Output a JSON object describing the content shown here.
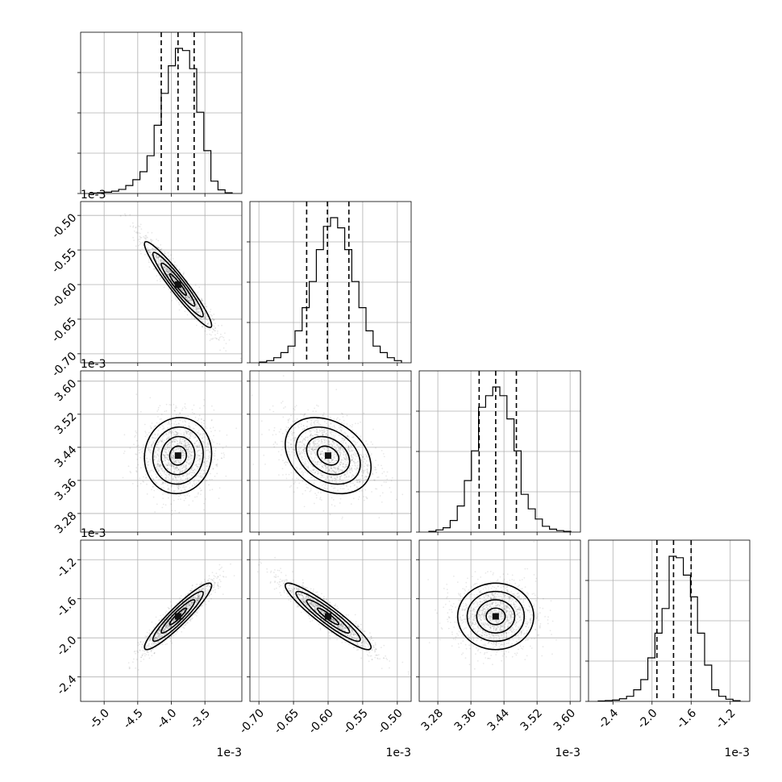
{
  "chart_data": {
    "type": "corner",
    "parameters": [
      {
        "mean": -3.9,
        "sd": 0.25,
        "range": [
          -5.35,
          -2.95
        ],
        "ticks": [
          "-5.0",
          "-4.5",
          "-4.0",
          "-3.5"
        ],
        "tick_values": [
          -5.0,
          -4.5,
          -4.0,
          -3.5
        ],
        "offset": "1e-3",
        "quantiles": [
          -4.15,
          -3.9,
          -3.66
        ]
      },
      {
        "mean": -0.6,
        "sd": 0.031,
        "range": [
          -0.713,
          -0.48
        ],
        "ticks": [
          "-0.70",
          "-0.65",
          "-0.60",
          "-0.55",
          "-0.50"
        ],
        "tick_values": [
          -0.7,
          -0.65,
          -0.6,
          -0.55,
          -0.5
        ],
        "offset": "1e-3",
        "quantiles": [
          -0.631,
          -0.601,
          -0.57
        ]
      },
      {
        "mean": 3.42,
        "sd": 0.046,
        "range": [
          3.235,
          3.625
        ],
        "ticks": [
          "3.28",
          "3.36",
          "3.44",
          "3.52",
          "3.60"
        ],
        "tick_values": [
          3.28,
          3.36,
          3.44,
          3.52,
          3.6
        ],
        "offset": "1e-3",
        "quantiles": [
          3.38,
          3.42,
          3.47
        ]
      },
      {
        "mean": -1.78,
        "sd": 0.17,
        "range": [
          -2.65,
          -1.0
        ],
        "ticks": [
          "-2.4",
          "-2.0",
          "-1.6",
          "-1.2"
        ],
        "tick_values": [
          -2.4,
          -2.0,
          -1.6,
          -1.2
        ],
        "offset": "1e-3",
        "quantiles": [
          -1.95,
          -1.78,
          -1.6
        ]
      }
    ],
    "histograms": [
      {
        "param": 0,
        "bins": 20,
        "counts": [
          3,
          6,
          9,
          16,
          28,
          55,
          95,
          150,
          260,
          470,
          690,
          880,
          1000,
          985,
          860,
          560,
          295,
          85,
          25,
          5
        ]
      },
      {
        "param": 1,
        "bins": 20,
        "counts": [
          5,
          15,
          35,
          70,
          115,
          220,
          380,
          560,
          780,
          940,
          1000,
          930,
          780,
          560,
          380,
          220,
          115,
          70,
          35,
          15
        ]
      },
      {
        "param": 2,
        "bins": 20,
        "counts": [
          5,
          15,
          30,
          80,
          180,
          355,
          560,
          860,
          940,
          1000,
          940,
          780,
          560,
          260,
          160,
          90,
          40,
          20,
          10,
          5
        ]
      },
      {
        "param": 3,
        "bins": 20,
        "counts": [
          3,
          6,
          9,
          18,
          35,
          80,
          150,
          300,
          470,
          640,
          1000,
          990,
          870,
          720,
          470,
          250,
          80,
          35,
          15,
          5
        ]
      }
    ],
    "correlations": [
      {
        "x": 0,
        "y": 1,
        "rho": -0.95
      },
      {
        "x": 0,
        "y": 2,
        "rho": 0.05
      },
      {
        "x": 1,
        "y": 2,
        "rho": -0.3
      },
      {
        "x": 0,
        "y": 3,
        "rho": 0.93
      },
      {
        "x": 1,
        "y": 3,
        "rho": -0.93
      },
      {
        "x": 2,
        "y": 3,
        "rho": 0.0
      }
    ],
    "title": "",
    "xlabel": "",
    "ylabel": "",
    "grid": true,
    "point_color": "#000000",
    "line_color": "#000000"
  }
}
